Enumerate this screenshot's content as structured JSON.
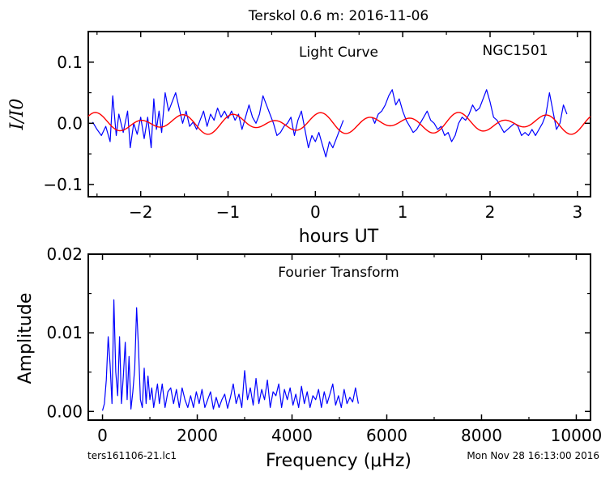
{
  "figure": {
    "title": "Terskol 0.6 m:  2016-11-06",
    "footer_left": "ters161106-21.lc1",
    "footer_right": "Mon Nov 28 16:13:00 2016"
  },
  "chart_data": [
    {
      "type": "line",
      "title": "Light Curve",
      "annotation": "NGC1501",
      "xlabel": "hours UT",
      "ylabel": "I/I0",
      "xlim": [
        -2.6,
        3.15
      ],
      "ylim": [
        -0.12,
        0.15
      ],
      "xticks": [
        -2,
        -1,
        0,
        1,
        2,
        3
      ],
      "yticks": [
        -0.1,
        0.0,
        0.1
      ],
      "xtick_labels": [
        "−2",
        "−1",
        "0",
        "1",
        "2",
        "3"
      ],
      "ytick_labels": [
        "−0.1",
        "0.0",
        "0.1"
      ],
      "series": [
        {
          "color": "#0000ff",
          "segments": [
            [
              [
                -2.55,
                0.002
              ],
              [
                -2.5,
                -0.01
              ],
              [
                -2.45,
                -0.02
              ],
              [
                -2.4,
                -0.005
              ],
              [
                -2.35,
                -0.03
              ],
              [
                -2.32,
                0.045
              ],
              [
                -2.28,
                -0.02
              ],
              [
                -2.25,
                0.015
              ],
              [
                -2.2,
                -0.015
              ],
              [
                -2.15,
                0.02
              ],
              [
                -2.12,
                -0.04
              ],
              [
                -2.08,
                0.0
              ],
              [
                -2.04,
                -0.018
              ],
              [
                -2.0,
                0.01
              ],
              [
                -1.96,
                -0.025
              ],
              [
                -1.92,
                0.01
              ],
              [
                -1.88,
                -0.04
              ],
              [
                -1.85,
                0.04
              ],
              [
                -1.82,
                -0.01
              ],
              [
                -1.79,
                0.02
              ],
              [
                -1.76,
                -0.015
              ],
              [
                -1.72,
                0.05
              ],
              [
                -1.68,
                0.02
              ],
              [
                -1.64,
                0.035
              ],
              [
                -1.6,
                0.05
              ],
              [
                -1.56,
                0.025
              ],
              [
                -1.52,
                0.0
              ],
              [
                -1.48,
                0.02
              ],
              [
                -1.44,
                -0.005
              ],
              [
                -1.4,
                0.002
              ],
              [
                -1.36,
                -0.01
              ],
              [
                -1.32,
                0.005
              ],
              [
                -1.28,
                0.02
              ],
              [
                -1.24,
                -0.005
              ],
              [
                -1.2,
                0.015
              ],
              [
                -1.16,
                0.005
              ],
              [
                -1.12,
                0.025
              ],
              [
                -1.08,
                0.01
              ],
              [
                -1.04,
                0.02
              ],
              [
                -1.0,
                0.008
              ],
              [
                -0.96,
                0.02
              ],
              [
                -0.92,
                0.005
              ],
              [
                -0.88,
                0.015
              ],
              [
                -0.84,
                -0.01
              ],
              [
                -0.8,
                0.01
              ],
              [
                -0.76,
                0.03
              ],
              [
                -0.72,
                0.01
              ],
              [
                -0.68,
                0.0
              ],
              [
                -0.64,
                0.015
              ],
              [
                -0.6,
                0.045
              ],
              [
                -0.56,
                0.03
              ],
              [
                -0.52,
                0.015
              ],
              [
                -0.48,
                0.0
              ],
              [
                -0.44,
                -0.02
              ],
              [
                -0.4,
                -0.015
              ],
              [
                -0.36,
                -0.005
              ],
              [
                -0.32,
                0.0
              ],
              [
                -0.28,
                0.01
              ],
              [
                -0.24,
                -0.02
              ],
              [
                -0.2,
                0.005
              ],
              [
                -0.16,
                0.02
              ],
              [
                -0.12,
                -0.01
              ],
              [
                -0.08,
                -0.04
              ],
              [
                -0.04,
                -0.02
              ],
              [
                0.0,
                -0.03
              ],
              [
                0.04,
                -0.015
              ],
              [
                0.08,
                -0.035
              ],
              [
                0.12,
                -0.055
              ],
              [
                0.16,
                -0.03
              ],
              [
                0.2,
                -0.04
              ],
              [
                0.24,
                -0.025
              ],
              [
                0.28,
                -0.01
              ],
              [
                0.32,
                0.005
              ]
            ],
            [
              [
                0.65,
                0.01
              ],
              [
                0.68,
                0.0
              ],
              [
                0.72,
                0.015
              ],
              [
                0.76,
                0.02
              ],
              [
                0.8,
                0.03
              ],
              [
                0.84,
                0.045
              ],
              [
                0.88,
                0.055
              ],
              [
                0.92,
                0.03
              ],
              [
                0.96,
                0.04
              ],
              [
                1.0,
                0.02
              ],
              [
                1.04,
                0.005
              ],
              [
                1.08,
                -0.005
              ],
              [
                1.12,
                -0.015
              ],
              [
                1.16,
                -0.01
              ],
              [
                1.2,
                0.0
              ],
              [
                1.24,
                0.01
              ],
              [
                1.28,
                0.02
              ],
              [
                1.32,
                0.005
              ],
              [
                1.36,
                0.0
              ],
              [
                1.4,
                -0.01
              ],
              [
                1.44,
                -0.005
              ],
              [
                1.48,
                -0.02
              ],
              [
                1.52,
                -0.015
              ],
              [
                1.56,
                -0.03
              ],
              [
                1.6,
                -0.02
              ],
              [
                1.64,
                0.0
              ],
              [
                1.68,
                0.01
              ],
              [
                1.72,
                0.005
              ],
              [
                1.76,
                0.015
              ],
              [
                1.8,
                0.03
              ],
              [
                1.84,
                0.02
              ],
              [
                1.88,
                0.025
              ],
              [
                1.92,
                0.04
              ],
              [
                1.96,
                0.055
              ],
              [
                2.0,
                0.035
              ],
              [
                2.04,
                0.01
              ],
              [
                2.08,
                0.005
              ],
              [
                2.12,
                -0.005
              ],
              [
                2.16,
                -0.015
              ],
              [
                2.2,
                -0.01
              ],
              [
                2.24,
                -0.005
              ],
              [
                2.28,
                0.0
              ],
              [
                2.32,
                -0.005
              ],
              [
                2.36,
                -0.02
              ],
              [
                2.4,
                -0.015
              ],
              [
                2.44,
                -0.02
              ],
              [
                2.48,
                -0.01
              ],
              [
                2.52,
                -0.02
              ],
              [
                2.56,
                -0.01
              ],
              [
                2.6,
                0.0
              ],
              [
                2.64,
                0.015
              ],
              [
                2.68,
                0.05
              ],
              [
                2.72,
                0.02
              ],
              [
                2.76,
                -0.01
              ],
              [
                2.8,
                0.0
              ],
              [
                2.84,
                0.03
              ],
              [
                2.88,
                0.015
              ]
            ]
          ]
        },
        {
          "color": "#ff0000",
          "segments": []
        }
      ]
    },
    {
      "type": "line",
      "title": "Fourier Transform",
      "xlabel": "Frequency (μHz)",
      "ylabel": "Amplitude",
      "xlim": [
        -300,
        10300
      ],
      "ylim": [
        -0.0011,
        0.02
      ],
      "xticks": [
        0,
        2000,
        4000,
        6000,
        8000,
        10000
      ],
      "yticks": [
        0.0,
        0.01,
        0.02
      ],
      "xtick_labels": [
        "0",
        "2000",
        "4000",
        "6000",
        "8000",
        "10000"
      ],
      "ytick_labels": [
        "0.00",
        "0.01",
        "0.02"
      ],
      "series": [
        {
          "color": "#0000ff",
          "x": [
            0,
            40,
            80,
            120,
            160,
            200,
            240,
            280,
            320,
            360,
            400,
            440,
            480,
            520,
            560,
            600,
            640,
            680,
            720,
            760,
            800,
            840,
            880,
            920,
            960,
            1000,
            1040,
            1080,
            1120,
            1160,
            1200,
            1260,
            1320,
            1380,
            1440,
            1500,
            1560,
            1620,
            1680,
            1740,
            1800,
            1860,
            1920,
            1980,
            2040,
            2100,
            2160,
            2220,
            2280,
            2340,
            2400,
            2460,
            2520,
            2580,
            2640,
            2700,
            2760,
            2820,
            2880,
            2940,
            3000,
            3060,
            3120,
            3180,
            3240,
            3300,
            3360,
            3420,
            3480,
            3540,
            3600,
            3660,
            3720,
            3780,
            3840,
            3900,
            3960,
            4020,
            4080,
            4140,
            4200,
            4260,
            4320,
            4380,
            4440,
            4500,
            4560,
            4620,
            4680,
            4740,
            4800,
            4860,
            4920,
            4980,
            5040,
            5100,
            5160,
            5220,
            5280,
            5340,
            5400
          ],
          "y": [
            0.0001,
            0.001,
            0.004,
            0.0095,
            0.006,
            0.001,
            0.0142,
            0.005,
            0.002,
            0.0095,
            0.001,
            0.0045,
            0.0088,
            0.0015,
            0.007,
            0.0003,
            0.0025,
            0.0055,
            0.0132,
            0.008,
            0.0015,
            0.0005,
            0.0055,
            0.001,
            0.0045,
            0.0015,
            0.003,
            0.0005,
            0.002,
            0.0035,
            0.001,
            0.0035,
            0.0005,
            0.0025,
            0.003,
            0.001,
            0.0028,
            0.0005,
            0.003,
            0.0015,
            0.0005,
            0.002,
            0.0005,
            0.0025,
            0.001,
            0.0028,
            0.0005,
            0.0015,
            0.0025,
            0.0003,
            0.0018,
            0.0005,
            0.0015,
            0.0022,
            0.0004,
            0.0018,
            0.0035,
            0.001,
            0.0022,
            0.0005,
            0.0052,
            0.0015,
            0.003,
            0.0008,
            0.0042,
            0.001,
            0.0028,
            0.0015,
            0.004,
            0.0005,
            0.0025,
            0.002,
            0.0035,
            0.0005,
            0.0028,
            0.0015,
            0.003,
            0.0008,
            0.0022,
            0.0005,
            0.0032,
            0.001,
            0.0025,
            0.0005,
            0.002,
            0.0015,
            0.0028,
            0.0005,
            0.0025,
            0.001,
            0.0022,
            0.0035,
            0.0008,
            0.002,
            0.0005,
            0.0028,
            0.001,
            0.0018,
            0.0012,
            0.003,
            0.001
          ]
        }
      ]
    }
  ]
}
